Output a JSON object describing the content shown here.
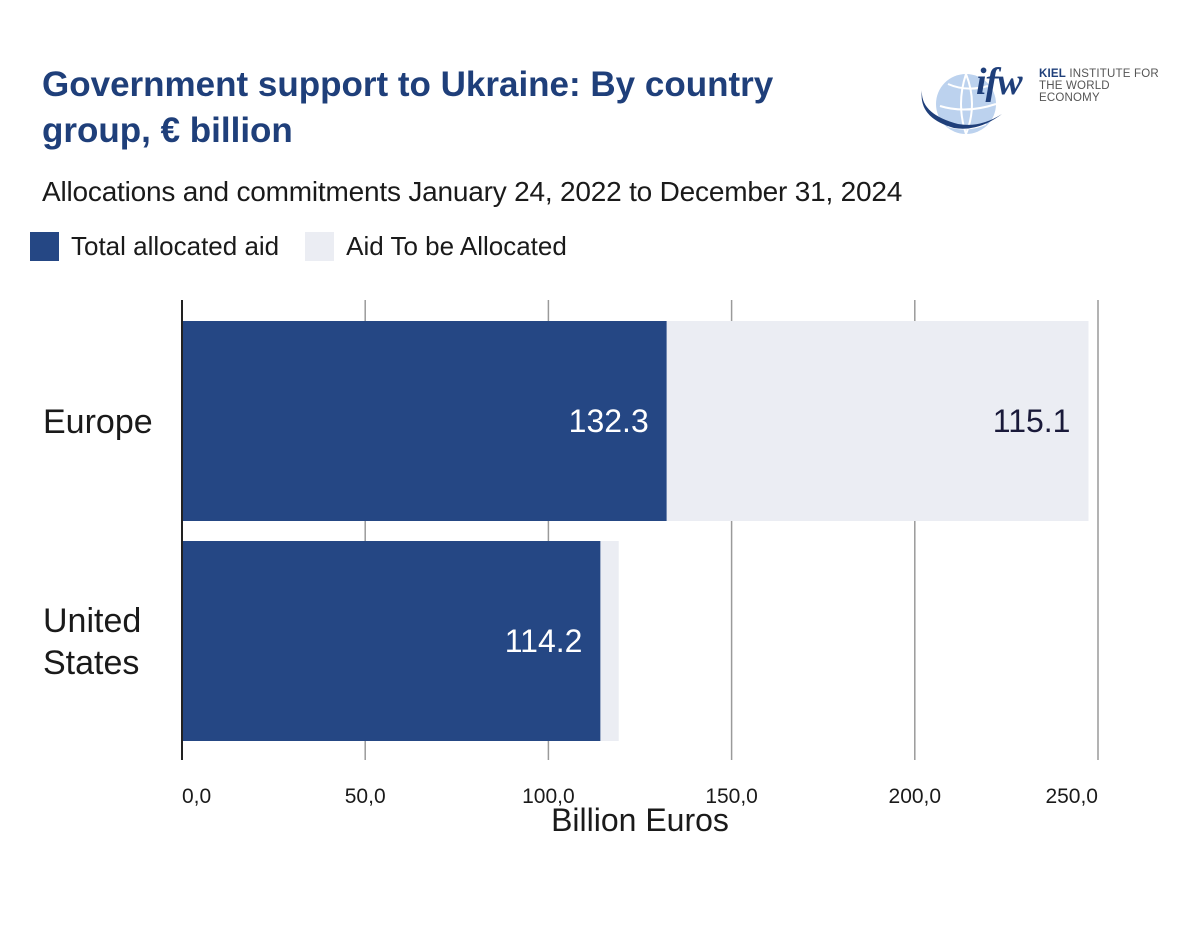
{
  "header": {
    "title": "Government support to Ukraine: By country group, € billion",
    "subtitle": "Allocations and commitments January 24, 2022 to December 31, 2024"
  },
  "logo": {
    "wordmark": "ifw",
    "line1_bold": "KIEL",
    "line1_rest": " INSTITUTE FOR",
    "line2": "THE WORLD ECONOMY"
  },
  "legend": {
    "items": [
      {
        "label": "Total allocated aid",
        "color": "#254784"
      },
      {
        "label": "Aid To be Allocated",
        "color": "#ebedf3"
      }
    ]
  },
  "chart_data": {
    "type": "bar",
    "orientation": "horizontal",
    "stacked": true,
    "categories": [
      "Europe",
      "United States"
    ],
    "category_lines": [
      [
        "Europe"
      ],
      [
        "United",
        "States"
      ]
    ],
    "series": [
      {
        "name": "Total allocated aid",
        "values": [
          132.3,
          114.2
        ],
        "color": "#254784",
        "labels": [
          "132.3",
          "114.2"
        ]
      },
      {
        "name": "Aid To be Allocated",
        "values": [
          115.1,
          5.0
        ],
        "color": "#ebedf3",
        "labels": [
          "115.1",
          ""
        ]
      }
    ],
    "xlabel": "Billion Euros",
    "xlim": [
      0,
      250
    ],
    "xticks": [
      0,
      50,
      100,
      150,
      200,
      250
    ],
    "xtick_labels": [
      "0,0",
      "50,0",
      "100,0",
      "150,0",
      "200,0",
      "250,0"
    ],
    "grid": true
  }
}
